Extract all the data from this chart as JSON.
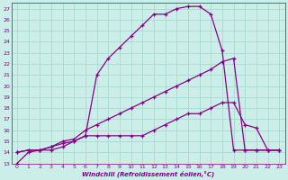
{
  "xlabel": "Windchill (Refroidissement éolien,°C)",
  "bg_color": "#cceee8",
  "grid_color": "#aad8d2",
  "line_color": "#880088",
  "xlim": [
    -0.5,
    23.5
  ],
  "ylim": [
    13,
    27.5
  ],
  "xticks": [
    0,
    1,
    2,
    3,
    4,
    5,
    6,
    7,
    8,
    9,
    10,
    11,
    12,
    13,
    14,
    15,
    16,
    17,
    18,
    19,
    20,
    21,
    22,
    23
  ],
  "yticks": [
    13,
    14,
    15,
    16,
    17,
    18,
    19,
    20,
    21,
    22,
    23,
    24,
    25,
    26,
    27
  ],
  "curve1_x": [
    0,
    1,
    2,
    3,
    4,
    5,
    6,
    7,
    8,
    9,
    10,
    11,
    12,
    13,
    14,
    15,
    16,
    17,
    18,
    19,
    20,
    21,
    22,
    23
  ],
  "curve1_y": [
    13.0,
    14.0,
    14.2,
    14.2,
    14.5,
    15.0,
    15.5,
    21.0,
    22.5,
    23.5,
    24.5,
    25.5,
    26.5,
    26.5,
    27.0,
    27.2,
    27.2,
    26.5,
    23.2,
    14.2,
    14.2,
    14.2,
    14.2,
    14.2
  ],
  "curve2_x": [
    0,
    1,
    2,
    3,
    4,
    5,
    6,
    7,
    8,
    9,
    10,
    11,
    12,
    13,
    14,
    15,
    16,
    17,
    18,
    19,
    20,
    21,
    22,
    23
  ],
  "curve2_y": [
    14.0,
    14.2,
    14.2,
    14.5,
    15.0,
    15.2,
    16.0,
    16.5,
    17.0,
    17.5,
    18.0,
    18.5,
    19.0,
    19.5,
    20.0,
    20.5,
    21.0,
    21.5,
    22.2,
    22.5,
    14.2,
    14.2,
    14.2,
    14.2
  ],
  "curve3_x": [
    0,
    1,
    2,
    3,
    4,
    5,
    6,
    7,
    8,
    9,
    10,
    11,
    12,
    13,
    14,
    15,
    16,
    17,
    18,
    19,
    20,
    21,
    22,
    23
  ],
  "curve3_y": [
    14.0,
    14.2,
    14.2,
    14.5,
    14.8,
    15.0,
    15.5,
    15.5,
    15.5,
    15.5,
    15.5,
    15.5,
    16.0,
    16.5,
    17.0,
    17.5,
    17.5,
    18.0,
    18.5,
    18.5,
    16.5,
    16.2,
    14.2,
    14.2
  ]
}
